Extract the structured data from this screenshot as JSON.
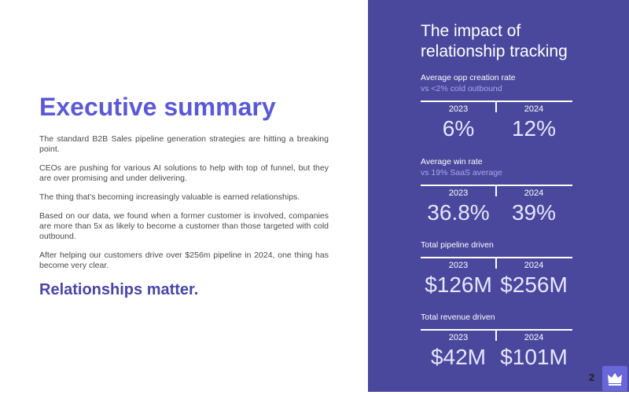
{
  "left": {
    "title": "Executive summary",
    "paragraphs": [
      "The standard B2B Sales pipeline generation strategies are hitting a breaking point.",
      "CEOs are pushing for various AI solutions to help with top of funnel, but they are over promising and under delivering.",
      "The thing that's becoming increasingly valuable is earned relationships.",
      "Based on our data, we found when a former customer is involved, companies are more than 5x as likely to become a customer than those targeted with cold outbound.",
      "After helping our customers drive over $256m pipeline in 2024, one thing has become very clear."
    ],
    "tagline": "Relationships matter."
  },
  "right": {
    "title": "The impact of relationship tracking",
    "metrics": [
      {
        "label": "Average opp creation rate",
        "sublabel": "vs <2% cold outbound",
        "years": [
          "2023",
          "2024"
        ],
        "values": [
          "6%",
          "12%"
        ]
      },
      {
        "label": "Average win rate",
        "sublabel": "vs 19% SaaS average",
        "years": [
          "2023",
          "2024"
        ],
        "values": [
          "36.8%",
          "39%"
        ]
      },
      {
        "label": "Total pipeline driven",
        "years": [
          "2023",
          "2024"
        ],
        "values": [
          "$126M",
          "$256M"
        ]
      },
      {
        "label": "Total revenue driven",
        "years": [
          "2023",
          "2024"
        ],
        "values": [
          "$42M",
          "$101M"
        ]
      }
    ]
  },
  "page_number": "2"
}
